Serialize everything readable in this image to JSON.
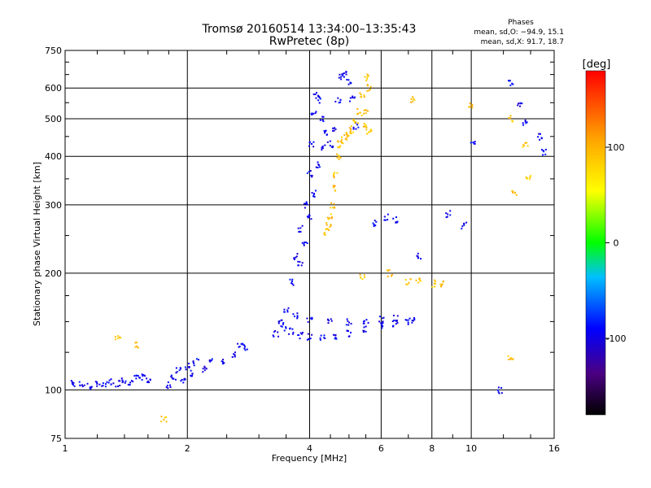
{
  "chart_data": {
    "type": "scatter",
    "title": "Tromsø 20160514 13:34:00–13:35:43",
    "subtitle": "RwPretec (8p)",
    "xlabel": "Frequency [MHz]",
    "ylabel": "Stationary phase Virtual Height [km]",
    "x_scale": "log",
    "y_scale": "log",
    "xlim": [
      1,
      16
    ],
    "ylim": [
      75,
      750
    ],
    "x_ticks": [
      1,
      2,
      4,
      6,
      8,
      10,
      16
    ],
    "x_tick_labels": [
      "1",
      "2",
      "4",
      "6",
      "8",
      "10",
      "16"
    ],
    "y_ticks": [
      75,
      100,
      200,
      300,
      400,
      500,
      600,
      750
    ],
    "y_tick_labels": [
      "75",
      "100",
      "200",
      "300",
      "400",
      "500",
      "600",
      "750"
    ],
    "grid": true,
    "phase_info": {
      "title": "Phases",
      "line_o": "mean, sd,O: −94.9, 15.1",
      "line_x": "mean, sd,X:  91.7, 18.7"
    },
    "colorbar": {
      "label": "[deg]",
      "range": [
        -180,
        180
      ],
      "ticks": [
        100,
        0,
        -100
      ],
      "tick_labels": [
        "100",
        "0",
        "-100"
      ]
    },
    "series": [
      {
        "mode": "O",
        "phase_mean": -94.9,
        "phase_sd": 15.1,
        "points": [
          [
            1.05,
            104
          ],
          [
            1.1,
            103
          ],
          [
            1.15,
            102
          ],
          [
            1.2,
            104
          ],
          [
            1.25,
            103
          ],
          [
            1.3,
            105
          ],
          [
            1.35,
            104
          ],
          [
            1.4,
            106
          ],
          [
            1.45,
            105
          ],
          [
            1.5,
            107
          ],
          [
            1.55,
            108
          ],
          [
            1.6,
            106
          ],
          [
            1.8,
            103
          ],
          [
            1.85,
            108
          ],
          [
            1.9,
            112
          ],
          [
            1.95,
            106
          ],
          [
            2.0,
            115
          ],
          [
            2.05,
            110
          ],
          [
            2.1,
            118
          ],
          [
            2.2,
            113
          ],
          [
            2.3,
            120
          ],
          [
            2.45,
            118
          ],
          [
            2.6,
            124
          ],
          [
            2.7,
            130
          ],
          [
            2.8,
            128
          ],
          [
            3.3,
            140
          ],
          [
            3.4,
            150
          ],
          [
            3.5,
            160
          ],
          [
            3.6,
            190
          ],
          [
            3.7,
            220
          ],
          [
            3.8,
            260
          ],
          [
            3.9,
            300
          ],
          [
            4.0,
            360
          ],
          [
            4.05,
            430
          ],
          [
            4.1,
            520
          ],
          [
            4.15,
            580
          ],
          [
            4.2,
            560
          ],
          [
            4.3,
            500
          ],
          [
            4.4,
            460
          ],
          [
            4.5,
            430
          ],
          [
            4.6,
            470
          ],
          [
            4.7,
            560
          ],
          [
            4.8,
            640
          ],
          [
            4.9,
            650
          ],
          [
            5.0,
            620
          ],
          [
            5.1,
            560
          ],
          [
            5.2,
            480
          ],
          [
            3.45,
            145
          ],
          [
            3.6,
            142
          ],
          [
            3.8,
            138
          ],
          [
            4.0,
            137
          ],
          [
            4.3,
            136
          ],
          [
            4.6,
            137
          ],
          [
            5.0,
            140
          ],
          [
            5.5,
            143
          ],
          [
            6.0,
            146
          ],
          [
            6.5,
            148
          ],
          [
            7.0,
            150
          ],
          [
            3.7,
            155
          ],
          [
            4.0,
            152
          ],
          [
            4.5,
            150
          ],
          [
            5.0,
            150
          ],
          [
            5.5,
            151
          ],
          [
            6.0,
            152
          ],
          [
            6.5,
            153
          ],
          [
            7.2,
            152
          ],
          [
            3.8,
            210
          ],
          [
            3.9,
            240
          ],
          [
            4.0,
            280
          ],
          [
            4.1,
            320
          ],
          [
            4.2,
            380
          ],
          [
            4.3,
            420
          ],
          [
            5.8,
            268
          ],
          [
            6.2,
            278
          ],
          [
            6.5,
            275
          ],
          [
            7.4,
            222
          ],
          [
            8.8,
            284
          ],
          [
            9.6,
            265
          ],
          [
            10.1,
            430
          ],
          [
            11.8,
            100
          ],
          [
            12.5,
            620
          ],
          [
            13.2,
            545
          ],
          [
            13.6,
            490
          ],
          [
            14.7,
            450
          ],
          [
            15.1,
            410
          ]
        ]
      },
      {
        "mode": "X",
        "phase_mean": 91.7,
        "phase_sd": 18.7,
        "points": [
          [
            4.4,
            255
          ],
          [
            4.45,
            265
          ],
          [
            4.5,
            280
          ],
          [
            4.55,
            300
          ],
          [
            4.6,
            330
          ],
          [
            4.65,
            360
          ],
          [
            4.7,
            400
          ],
          [
            4.75,
            430
          ],
          [
            4.8,
            440
          ],
          [
            4.9,
            450
          ],
          [
            5.0,
            460
          ],
          [
            5.1,
            470
          ],
          [
            5.2,
            490
          ],
          [
            5.3,
            520
          ],
          [
            5.4,
            580
          ],
          [
            5.5,
            640
          ],
          [
            5.6,
            600
          ],
          [
            5.5,
            520
          ],
          [
            5.45,
            480
          ],
          [
            5.6,
            460
          ],
          [
            5.4,
            195
          ],
          [
            6.3,
            200
          ],
          [
            7.0,
            190
          ],
          [
            7.4,
            192
          ],
          [
            8.1,
            188
          ],
          [
            8.5,
            187
          ],
          [
            1.35,
            135
          ],
          [
            1.5,
            130
          ],
          [
            1.75,
            84
          ],
          [
            7.2,
            560
          ],
          [
            10.0,
            540
          ],
          [
            12.5,
            500
          ],
          [
            12.5,
            120
          ],
          [
            12.8,
            320
          ],
          [
            13.6,
            430
          ],
          [
            13.8,
            350
          ]
        ]
      }
    ]
  }
}
